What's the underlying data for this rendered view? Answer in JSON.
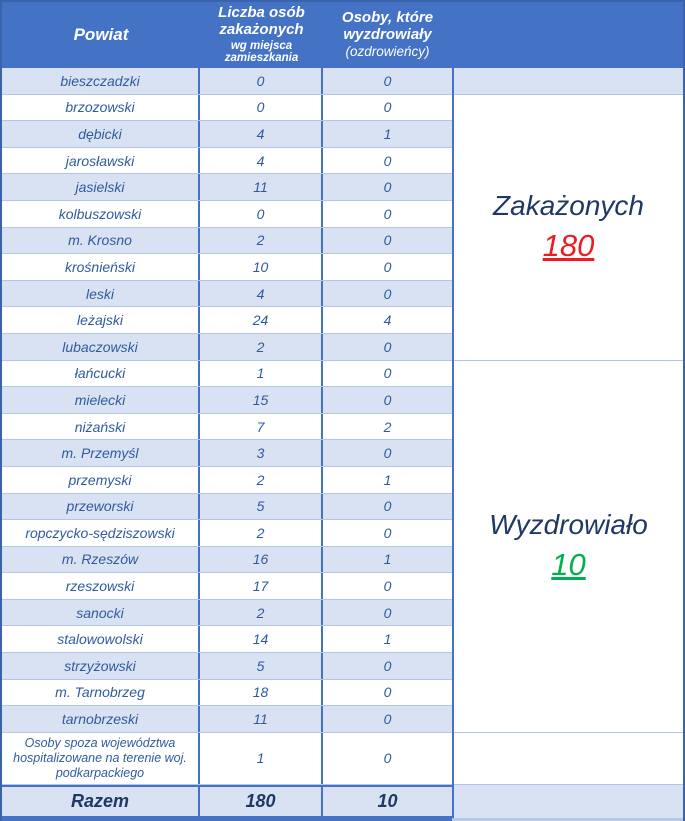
{
  "table": {
    "headers": {
      "powiat": "Powiat",
      "infected_main": "Liczba osób zakażonych",
      "infected_sub": "wg miejsca zamieszkania",
      "recovered_main": "Osoby, które wyzdrowiały",
      "recovered_sub": "(ozdrowieńcy)"
    },
    "rows": [
      {
        "powiat": "bieszczadzki",
        "infected": "0",
        "recovered": "0"
      },
      {
        "powiat": "brzozowski",
        "infected": "0",
        "recovered": "0"
      },
      {
        "powiat": "dębicki",
        "infected": "4",
        "recovered": "1"
      },
      {
        "powiat": "jarosławski",
        "infected": "4",
        "recovered": "0"
      },
      {
        "powiat": "jasielski",
        "infected": "11",
        "recovered": "0"
      },
      {
        "powiat": "kolbuszowski",
        "infected": "0",
        "recovered": "0"
      },
      {
        "powiat": "m. Krosno",
        "infected": "2",
        "recovered": "0"
      },
      {
        "powiat": "krośnieński",
        "infected": "10",
        "recovered": "0"
      },
      {
        "powiat": "leski",
        "infected": "4",
        "recovered": "0"
      },
      {
        "powiat": "leżajski",
        "infected": "24",
        "recovered": "4"
      },
      {
        "powiat": "lubaczowski",
        "infected": "2",
        "recovered": "0"
      },
      {
        "powiat": "łańcucki",
        "infected": "1",
        "recovered": "0"
      },
      {
        "powiat": "mielecki",
        "infected": "15",
        "recovered": "0"
      },
      {
        "powiat": "niżański",
        "infected": "7",
        "recovered": "2"
      },
      {
        "powiat": "m. Przemyśl",
        "infected": "3",
        "recovered": "0"
      },
      {
        "powiat": "przemyski",
        "infected": "2",
        "recovered": "1"
      },
      {
        "powiat": "przeworski",
        "infected": "5",
        "recovered": "0"
      },
      {
        "powiat": "ropczycko-sędziszowski",
        "infected": "2",
        "recovered": "0"
      },
      {
        "powiat": "m. Rzeszów",
        "infected": "16",
        "recovered": "1"
      },
      {
        "powiat": "rzeszowski",
        "infected": "17",
        "recovered": "0"
      },
      {
        "powiat": "sanocki",
        "infected": "2",
        "recovered": "0"
      },
      {
        "powiat": "stalowowolski",
        "infected": "14",
        "recovered": "1"
      },
      {
        "powiat": "strzyżowski",
        "infected": "5",
        "recovered": "0"
      },
      {
        "powiat": "m. Tarnobrzeg",
        "infected": "18",
        "recovered": "0"
      },
      {
        "powiat": "tarnobrzeski",
        "infected": "11",
        "recovered": "0"
      }
    ],
    "special_row": {
      "label": "Osoby spoza województwa hospitalizowane na terenie woj. podkarpackiego",
      "infected": "1",
      "recovered": "0"
    },
    "total_row": {
      "label": "Razem",
      "infected": "180",
      "recovered": "10"
    }
  },
  "summary": {
    "infected_label": "Zakażonych",
    "infected_value": "180",
    "recovered_label": "Wyzdrowiało",
    "recovered_value": "10"
  },
  "colors": {
    "header_bg": "#4472C4",
    "row_alt_bg": "#D9E2F3",
    "border_blue": "#4472C4",
    "border_light": "#B4C6E7",
    "row_text": "#2F5B9E",
    "dark_navy": "#1F3864",
    "infected_red": "#ED1C24",
    "recovered_green": "#00B050"
  }
}
